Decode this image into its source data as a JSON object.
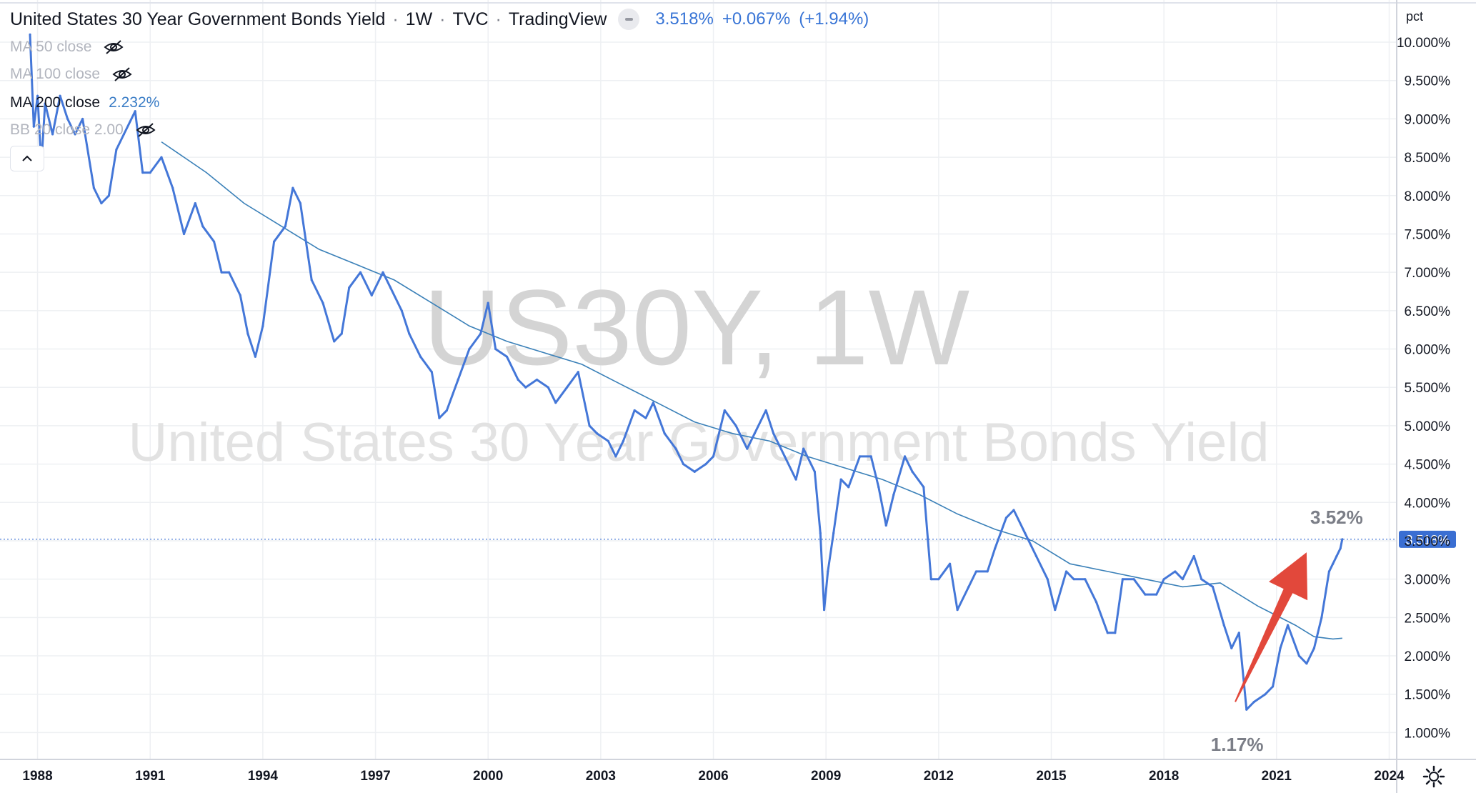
{
  "header": {
    "title": "United States 30 Year Government Bonds Yield",
    "interval": "1W",
    "exchange": "TVC",
    "source": "TradingView",
    "last_price": "3.518%",
    "change": "+0.067%",
    "change_pct": "(+1.94%)"
  },
  "indicators": [
    {
      "label": "MA 50 close",
      "value": "",
      "hidden": true
    },
    {
      "label": "MA 100 close",
      "value": "",
      "hidden": true
    },
    {
      "label": "MA 200 close",
      "value": "2.232%",
      "hidden": false
    },
    {
      "label": "BB 20 close 2.00",
      "value": "",
      "hidden": true
    }
  ],
  "watermark": {
    "symbol": "US30Y, 1W",
    "name": "United States 30 Year Government Bonds Yield"
  },
  "price_scale_unit": "pct",
  "price_label": "3.518%",
  "annotations": {
    "high": "3.52%",
    "low": "1.17%"
  },
  "colors": {
    "series": "#4477d8",
    "ma": "#3a80b8",
    "arrow": "#e2483b",
    "price_label_bg": "#3a6ed2",
    "grid": "#eef0f3"
  },
  "icons": {
    "collapse": "chevron-up-icon",
    "settings": "gear-icon",
    "hidden_indicator": "eye-off-icon"
  },
  "chart_data": {
    "type": "line",
    "title": "United States 30 Year Government Bonds Yield",
    "x_ticks": [
      "1988",
      "1991",
      "1994",
      "1997",
      "2000",
      "2003",
      "2006",
      "2009",
      "2012",
      "2015",
      "2018",
      "2021",
      "2024"
    ],
    "y_ticks": [
      "1.000%",
      "1.500%",
      "2.000%",
      "2.500%",
      "3.000%",
      "3.500%",
      "4.000%",
      "4.500%",
      "5.000%",
      "5.500%",
      "6.000%",
      "6.500%",
      "7.000%",
      "7.500%",
      "8.000%",
      "8.500%",
      "9.000%",
      "9.500%",
      "10.000%"
    ],
    "xlim": [
      1987.0,
      2024.2
    ],
    "ylim": [
      0.65,
      10.55
    ],
    "grid": true,
    "series": [
      {
        "name": "US30Y",
        "x": [
          1987.8,
          1987.9,
          1988.0,
          1988.1,
          1988.2,
          1988.4,
          1988.6,
          1988.8,
          1989.0,
          1989.2,
          1989.5,
          1989.7,
          1989.9,
          1990.1,
          1990.3,
          1990.6,
          1990.8,
          1991.0,
          1991.3,
          1991.6,
          1991.9,
          1992.2,
          1992.4,
          1992.7,
          1992.9,
          1993.1,
          1993.4,
          1993.6,
          1993.8,
          1994.0,
          1994.3,
          1994.6,
          1994.8,
          1995.0,
          1995.3,
          1995.6,
          1995.9,
          1996.1,
          1996.3,
          1996.6,
          1996.9,
          1997.2,
          1997.4,
          1997.7,
          1997.9,
          1998.2,
          1998.5,
          1998.7,
          1998.9,
          1999.2,
          1999.5,
          1999.8,
          2000.0,
          2000.2,
          2000.5,
          2000.8,
          2001.0,
          2001.3,
          2001.6,
          2001.8,
          2002.1,
          2002.4,
          2002.7,
          2002.9,
          2003.2,
          2003.4,
          2003.6,
          2003.9,
          2004.2,
          2004.4,
          2004.7,
          2005.0,
          2005.2,
          2005.5,
          2005.8,
          2006.0,
          2006.3,
          2006.6,
          2006.9,
          2007.1,
          2007.4,
          2007.6,
          2007.9,
          2008.2,
          2008.4,
          2008.7,
          2008.85,
          2008.95,
          2009.05,
          2009.2,
          2009.4,
          2009.6,
          2009.9,
          2010.2,
          2010.4,
          2010.6,
          2010.8,
          2011.1,
          2011.3,
          2011.6,
          2011.8,
          2012.0,
          2012.3,
          2012.5,
          2012.8,
          2013.0,
          2013.3,
          2013.5,
          2013.8,
          2014.0,
          2014.3,
          2014.6,
          2014.9,
          2015.1,
          2015.4,
          2015.6,
          2015.9,
          2016.2,
          2016.5,
          2016.7,
          2016.9,
          2017.2,
          2017.5,
          2017.8,
          2018.0,
          2018.3,
          2018.5,
          2018.8,
          2019.0,
          2019.3,
          2019.6,
          2019.8,
          2020.0,
          2020.2,
          2020.4,
          2020.7,
          2020.9,
          2021.1,
          2021.3,
          2021.6,
          2021.8,
          2022.0,
          2022.2,
          2022.4,
          2022.5,
          2022.6,
          2022.7,
          2022.75
        ],
        "y": [
          10.1,
          8.9,
          9.3,
          8.4,
          9.2,
          8.8,
          9.3,
          9.0,
          8.8,
          9.0,
          8.1,
          7.9,
          8.0,
          8.6,
          8.8,
          9.1,
          8.3,
          8.3,
          8.5,
          8.1,
          7.5,
          7.9,
          7.6,
          7.4,
          7.0,
          7.0,
          6.7,
          6.2,
          5.9,
          6.3,
          7.4,
          7.6,
          8.1,
          7.9,
          6.9,
          6.6,
          6.1,
          6.2,
          6.8,
          7.0,
          6.7,
          7.0,
          6.8,
          6.5,
          6.2,
          5.9,
          5.7,
          5.1,
          5.2,
          5.6,
          6.0,
          6.2,
          6.6,
          6.0,
          5.9,
          5.6,
          5.5,
          5.6,
          5.5,
          5.3,
          5.5,
          5.7,
          5.0,
          4.9,
          4.8,
          4.6,
          4.8,
          5.2,
          5.1,
          5.3,
          4.9,
          4.7,
          4.5,
          4.4,
          4.5,
          4.6,
          5.2,
          5.0,
          4.7,
          4.9,
          5.2,
          4.9,
          4.6,
          4.3,
          4.7,
          4.4,
          3.6,
          2.6,
          3.1,
          3.6,
          4.3,
          4.2,
          4.6,
          4.6,
          4.2,
          3.7,
          4.1,
          4.6,
          4.4,
          4.2,
          3.0,
          3.0,
          3.2,
          2.6,
          2.9,
          3.1,
          3.1,
          3.4,
          3.8,
          3.9,
          3.6,
          3.3,
          3.0,
          2.6,
          3.1,
          3.0,
          3.0,
          2.7,
          2.3,
          2.3,
          3.0,
          3.0,
          2.8,
          2.8,
          3.0,
          3.1,
          3.0,
          3.3,
          3.0,
          2.9,
          2.4,
          2.1,
          2.3,
          1.3,
          1.4,
          1.5,
          1.6,
          2.1,
          2.4,
          2.0,
          1.9,
          2.1,
          2.5,
          3.1,
          3.2,
          3.3,
          3.4,
          3.52
        ]
      },
      {
        "name": "MA 200 close",
        "x": [
          1991.3,
          1992.5,
          1993.5,
          1994.5,
          1995.5,
          1996.5,
          1997.5,
          1998.5,
          1999.5,
          2000.5,
          2001.5,
          2002.5,
          2003.5,
          2004.5,
          2005.5,
          2006.5,
          2007.5,
          2008.5,
          2009.5,
          2010.5,
          2011.5,
          2012.5,
          2013.5,
          2014.5,
          2015.5,
          2016.5,
          2017.5,
          2018.5,
          2019.5,
          2020.5,
          2021.5,
          2022.0,
          2022.5,
          2022.75
        ],
        "y": [
          8.7,
          8.3,
          7.9,
          7.6,
          7.3,
          7.1,
          6.9,
          6.6,
          6.3,
          6.1,
          5.95,
          5.8,
          5.55,
          5.3,
          5.05,
          4.9,
          4.8,
          4.6,
          4.45,
          4.3,
          4.1,
          3.85,
          3.65,
          3.5,
          3.2,
          3.1,
          3.0,
          2.9,
          2.95,
          2.65,
          2.4,
          2.25,
          2.22,
          2.23
        ]
      }
    ]
  }
}
